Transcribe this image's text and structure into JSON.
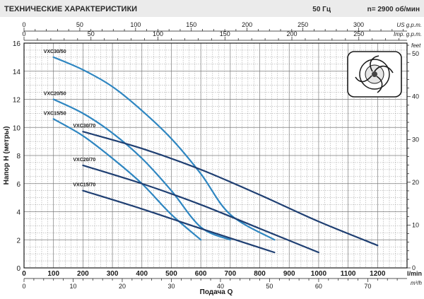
{
  "header": {
    "title": "ТЕХНИЧЕСКИЕ ХАРАКТЕРИСТИКИ",
    "frequency": "50 Гц",
    "speed": "n= 2900 об/мин"
  },
  "colors": {
    "series_50": "#2e86c1",
    "series_70": "#1f3f72",
    "grid": "#7a7a7a",
    "header_bg": "#ebebeb"
  },
  "icon": "impeller-icon",
  "chart_data": {
    "type": "line",
    "ylabel": "Напор H (метры)",
    "xlabel": "Подача Q",
    "x_unit": "l/min",
    "xlim": [
      0,
      1300
    ],
    "ylim": [
      0,
      16
    ],
    "grid": true,
    "x_ticks": [
      0,
      100,
      200,
      300,
      400,
      500,
      600,
      700,
      800,
      900,
      1000,
      1100,
      1200
    ],
    "y_ticks": [
      0,
      2,
      4,
      6,
      8,
      10,
      12,
      14,
      16
    ],
    "top_axes": [
      {
        "unit": "US g.p.m.",
        "ticks": [
          "0",
          "50",
          "100",
          "150",
          "200",
          "250",
          "300"
        ],
        "max": 343.4
      },
      {
        "unit": "Imp. g.p.m.",
        "ticks": [
          "0",
          "50",
          "100",
          "150",
          "200",
          "250"
        ],
        "max": 286.0
      }
    ],
    "bottom_axis2": {
      "unit": "m³/h",
      "ticks": [
        "0",
        "10",
        "20",
        "30",
        "40",
        "50",
        "60",
        "70"
      ],
      "max": 78.0
    },
    "right_axis": {
      "unit": "feet",
      "ticks": [
        "0",
        "10",
        "20",
        "30",
        "40",
        "50"
      ],
      "max": 52.5
    },
    "series": [
      {
        "name": "VXC30/50",
        "style": "50",
        "x": [
          100,
          200,
          300,
          400,
          500,
          600,
          700
        ],
        "y": [
          15.0,
          14.1,
          12.9,
          11.2,
          9.2,
          6.7,
          3.8
        ],
        "end": [
          850,
          2.0
        ]
      },
      {
        "name": "VXC20/50",
        "style": "50",
        "x": [
          100,
          200,
          300,
          400,
          500,
          600
        ],
        "y": [
          12.0,
          11.0,
          9.6,
          7.8,
          5.5,
          2.9
        ],
        "end": [
          700,
          2.0
        ]
      },
      {
        "name": "VXC15/50",
        "style": "50",
        "x": [
          100,
          200,
          300,
          400,
          500
        ],
        "y": [
          10.6,
          9.4,
          7.8,
          6.0,
          3.8
        ],
        "end": [
          600,
          2.0
        ]
      },
      {
        "name": "VXC30/70",
        "style": "70",
        "x": [
          200,
          400,
          600,
          800,
          1000
        ],
        "y": [
          9.7,
          8.5,
          7.0,
          5.2,
          3.3
        ],
        "end": [
          1200,
          1.6
        ]
      },
      {
        "name": "VXC20/70",
        "style": "70",
        "x": [
          200,
          400,
          600,
          800
        ],
        "y": [
          7.3,
          6.0,
          4.5,
          2.8
        ],
        "end": [
          1000,
          1.1
        ]
      },
      {
        "name": "VXC15/70",
        "style": "70",
        "x": [
          200,
          400,
          600
        ],
        "y": [
          5.5,
          4.2,
          2.8
        ],
        "end": [
          850,
          1.1
        ]
      }
    ]
  }
}
